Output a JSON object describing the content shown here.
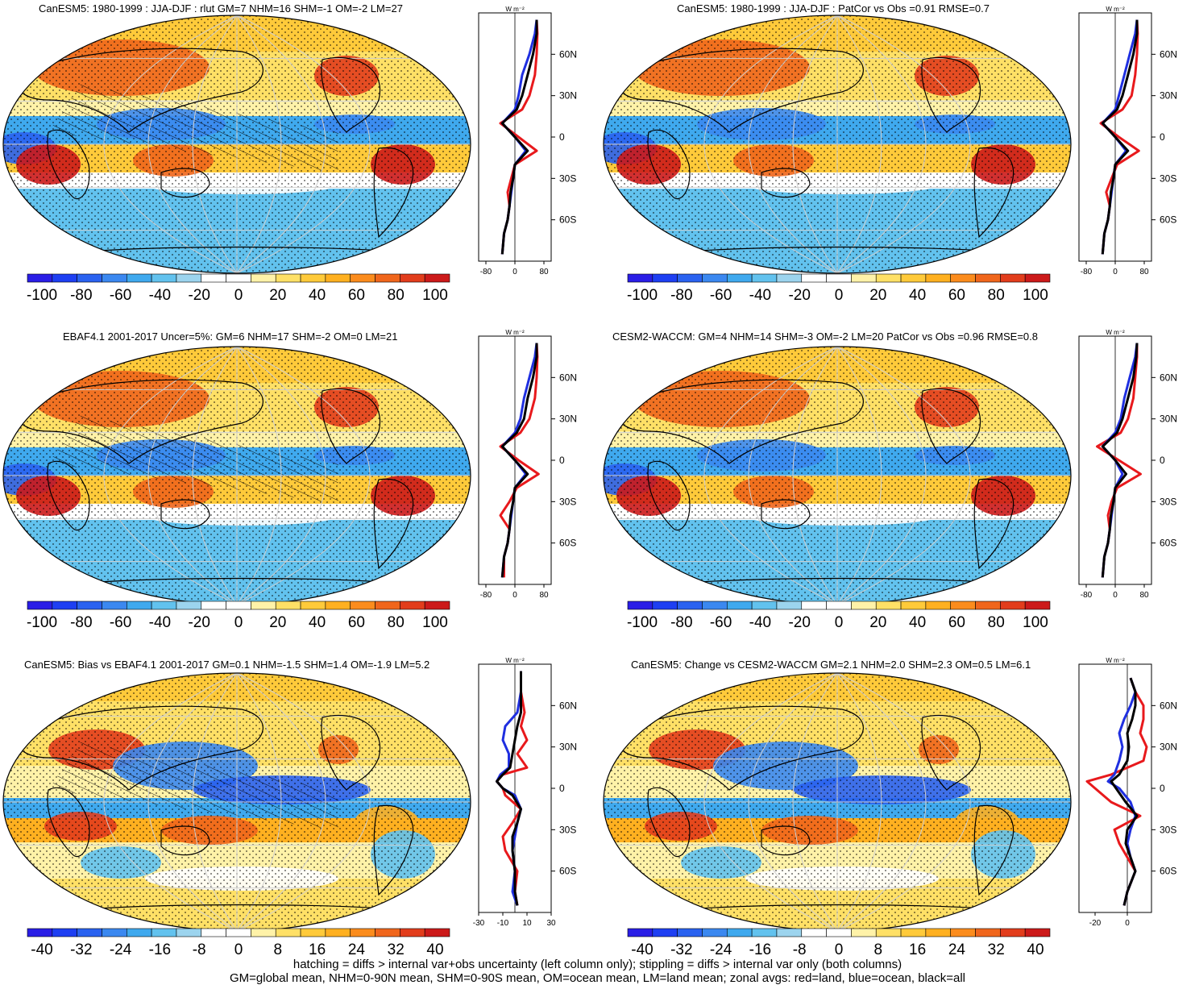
{
  "panels": [
    {
      "title": "CanESM5: 1980-1999 : JJA-DJF : rlut GM=7 NHM=16 SHM=-1 OM=-2 LM=27",
      "colorbar_ticks": [
        "-100",
        "-80",
        "-60",
        "-40",
        "-20",
        "0",
        "20",
        "40",
        "60",
        "80",
        "100"
      ],
      "zonal_xticks": [
        "-80",
        "0",
        "80"
      ],
      "zonal_yticks": [
        "60N",
        "30N",
        "0",
        "30S",
        "60S"
      ],
      "unit": "W m⁻²",
      "hatched": true
    },
    {
      "title": "CanESM5: 1980-1999 : JJA-DJF : PatCor vs Obs =0.91 RMSE=0.7",
      "colorbar_ticks": [
        "-100",
        "-80",
        "-60",
        "-40",
        "-20",
        "0",
        "20",
        "40",
        "60",
        "80",
        "100"
      ],
      "zonal_xticks": [
        "-80",
        "0",
        "80"
      ],
      "zonal_yticks": [
        "60N",
        "30N",
        "0",
        "30S",
        "60S"
      ],
      "unit": "W m⁻²",
      "hatched": false
    },
    {
      "title": "EBAF4.1 2001-2017 Uncer=5%: GM=6 NHM=17 SHM=-2 OM=0 LM=21",
      "colorbar_ticks": [
        "-100",
        "-80",
        "-60",
        "-40",
        "-20",
        "0",
        "20",
        "40",
        "60",
        "80",
        "100"
      ],
      "zonal_xticks": [
        "-80",
        "0",
        "80"
      ],
      "zonal_yticks": [
        "60N",
        "30N",
        "0",
        "30S",
        "60S"
      ],
      "unit": "W m⁻²",
      "hatched": true
    },
    {
      "title": "CESM2-WACCM: GM=4 NHM=14 SHM=-3 OM=-2 LM=20 PatCor vs Obs =0.96 RMSE=0.8",
      "colorbar_ticks": [
        "-100",
        "-80",
        "-60",
        "-40",
        "-20",
        "0",
        "20",
        "40",
        "60",
        "80",
        "100"
      ],
      "zonal_xticks": [
        "-80",
        "0",
        "80"
      ],
      "zonal_yticks": [
        "60N",
        "30N",
        "0",
        "30S",
        "60S"
      ],
      "unit": "W m⁻²",
      "hatched": false
    },
    {
      "title": "CanESM5: Bias vs EBAF4.1 2001-2017 GM=0.1 NHM=-1.5 SHM=1.4 OM=-1.9 LM=5.2",
      "colorbar_ticks": [
        "-40",
        "-32",
        "-24",
        "-16",
        "-8",
        "0",
        "8",
        "16",
        "24",
        "32",
        "40"
      ],
      "zonal_xticks": [
        "-30",
        "-10",
        "10",
        "30"
      ],
      "zonal_yticks": [
        "60N",
        "30N",
        "0",
        "30S",
        "60S"
      ],
      "unit": "W m⁻²",
      "hatched": true
    },
    {
      "title": "CanESM5: Change vs CESM2-WACCM GM=2.1 NHM=2.0 SHM=2.3 OM=0.5 LM=6.1",
      "colorbar_ticks": [
        "-40",
        "-32",
        "-24",
        "-16",
        "-8",
        "0",
        "8",
        "16",
        "24",
        "32",
        "40"
      ],
      "zonal_xticks": [
        "-20",
        "0"
      ],
      "zonal_yticks": [
        "60N",
        "30N",
        "0",
        "30S",
        "60S"
      ],
      "unit": "W m⁻²",
      "hatched": false
    }
  ],
  "footer": {
    "line1": "hatching = diffs > internal var+obs uncertainty (left column only); stippling = diffs > internal var only (both columns)",
    "line2": "GM=global mean, NHM=0-90N mean, SHM=0-90S mean, OM=ocean mean, LM=land mean; zonal avgs: red=land, blue=ocean, black=all"
  },
  "colors": {
    "land_line": "#e8191c",
    "ocean_line": "#1f2fe0",
    "all_line": "#000000",
    "palette": [
      "#2a1ee6",
      "#1e3ff2",
      "#2a62f0",
      "#3b88f0",
      "#3fa9ee",
      "#62c2ee",
      "#9cd4ee",
      "#ffffff",
      "#ffffff",
      "#fff2a8",
      "#ffe066",
      "#ffca3a",
      "#ffb020",
      "#fb8c1d",
      "#f0661c",
      "#e23d1c",
      "#cc1a1a"
    ]
  },
  "chart_data": [
    {
      "type": "line",
      "title": "CanESM5: 1980-1999 : JJA-DJF : rlut zonal average",
      "xlim": [
        -100,
        100
      ],
      "ylim": [
        -90,
        90
      ],
      "series": [
        {
          "name": "land",
          "lat": [
            -85,
            -70,
            -60,
            -50,
            -40,
            -30,
            -20,
            -10,
            0,
            10,
            20,
            30,
            45,
            60,
            75,
            85
          ],
          "values": [
            -35,
            -30,
            -20,
            -15,
            -20,
            -10,
            0,
            60,
            10,
            -40,
            20,
            40,
            55,
            60,
            62,
            60
          ]
        },
        {
          "name": "ocean",
          "lat": [
            -85,
            -70,
            -60,
            -50,
            -40,
            -30,
            -20,
            -10,
            0,
            10,
            20,
            30,
            45,
            60,
            75,
            85
          ],
          "values": [
            -35,
            -30,
            -20,
            -15,
            -10,
            -5,
            0,
            30,
            0,
            -35,
            0,
            10,
            20,
            40,
            55,
            60
          ]
        },
        {
          "name": "all",
          "lat": [
            -85,
            -70,
            -60,
            -50,
            -40,
            -30,
            -20,
            -10,
            0,
            10,
            20,
            30,
            45,
            60,
            75,
            85
          ],
          "values": [
            -35,
            -30,
            -20,
            -15,
            -12,
            -5,
            0,
            35,
            0,
            -35,
            5,
            20,
            35,
            50,
            60,
            60
          ]
        }
      ]
    },
    {
      "type": "line",
      "title": "CanESM5: 1980-1999 : JJA-DJF zonal average",
      "xlim": [
        -100,
        100
      ],
      "ylim": [
        -90,
        90
      ],
      "series": [
        {
          "name": "land",
          "lat": [
            -85,
            -70,
            -60,
            -50,
            -40,
            -30,
            -20,
            -10,
            0,
            10,
            20,
            30,
            45,
            60,
            75,
            85
          ],
          "values": [
            -35,
            -30,
            -20,
            -15,
            -25,
            -10,
            5,
            65,
            10,
            -40,
            20,
            45,
            55,
            60,
            62,
            60
          ]
        },
        {
          "name": "ocean",
          "lat": [
            -85,
            -70,
            -60,
            -50,
            -40,
            -30,
            -20,
            -10,
            0,
            10,
            20,
            30,
            45,
            60,
            75,
            85
          ],
          "values": [
            -35,
            -30,
            -20,
            -15,
            -10,
            -5,
            0,
            30,
            0,
            -35,
            0,
            10,
            25,
            40,
            55,
            60
          ]
        },
        {
          "name": "all",
          "lat": [
            -85,
            -70,
            -60,
            -50,
            -40,
            -30,
            -20,
            -10,
            0,
            10,
            20,
            30,
            45,
            60,
            75,
            85
          ],
          "values": [
            -35,
            -30,
            -20,
            -15,
            -12,
            -5,
            0,
            35,
            0,
            -35,
            5,
            20,
            35,
            50,
            60,
            60
          ]
        }
      ]
    },
    {
      "type": "line",
      "title": "EBAF4.1 2001-2017 zonal average",
      "xlim": [
        -100,
        100
      ],
      "ylim": [
        -90,
        90
      ],
      "series": [
        {
          "name": "land",
          "lat": [
            -85,
            -70,
            -60,
            -50,
            -40,
            -30,
            -20,
            -10,
            0,
            10,
            20,
            30,
            45,
            60,
            75,
            85
          ],
          "values": [
            -30,
            -30,
            -20,
            -15,
            -40,
            -15,
            5,
            65,
            10,
            -40,
            15,
            40,
            55,
            60,
            62,
            60
          ]
        },
        {
          "name": "ocean",
          "lat": [
            -85,
            -70,
            -60,
            -50,
            -40,
            -30,
            -20,
            -10,
            0,
            10,
            20,
            30,
            45,
            60,
            75,
            85
          ],
          "values": [
            -35,
            -30,
            -20,
            -15,
            -10,
            -5,
            0,
            30,
            0,
            -35,
            0,
            15,
            25,
            40,
            55,
            60
          ]
        },
        {
          "name": "all",
          "lat": [
            -85,
            -70,
            -60,
            -50,
            -40,
            -30,
            -20,
            -10,
            0,
            10,
            20,
            30,
            45,
            60,
            75,
            85
          ],
          "values": [
            -35,
            -30,
            -20,
            -15,
            -12,
            -5,
            0,
            35,
            0,
            -35,
            5,
            25,
            35,
            50,
            60,
            60
          ]
        }
      ]
    },
    {
      "type": "line",
      "title": "CESM2-WACCM zonal average",
      "xlim": [
        -100,
        100
      ],
      "ylim": [
        -90,
        90
      ],
      "series": [
        {
          "name": "land",
          "lat": [
            -85,
            -70,
            -60,
            -50,
            -40,
            -30,
            -20,
            -10,
            0,
            10,
            20,
            30,
            45,
            60,
            75,
            85
          ],
          "values": [
            -35,
            -30,
            -20,
            -15,
            -20,
            -10,
            5,
            70,
            10,
            -50,
            15,
            35,
            50,
            55,
            60,
            60
          ]
        },
        {
          "name": "ocean",
          "lat": [
            -85,
            -70,
            -60,
            -50,
            -40,
            -30,
            -20,
            -10,
            0,
            10,
            20,
            30,
            45,
            60,
            75,
            85
          ],
          "values": [
            -35,
            -30,
            -20,
            -15,
            -10,
            -5,
            0,
            20,
            0,
            -35,
            0,
            15,
            25,
            40,
            55,
            60
          ]
        },
        {
          "name": "all",
          "lat": [
            -85,
            -70,
            -60,
            -50,
            -40,
            -30,
            -20,
            -10,
            0,
            10,
            20,
            30,
            45,
            60,
            75,
            85
          ],
          "values": [
            -35,
            -30,
            -20,
            -15,
            -12,
            -5,
            0,
            30,
            0,
            -35,
            5,
            20,
            35,
            50,
            58,
            60
          ]
        }
      ]
    },
    {
      "type": "line",
      "title": "CanESM5: Bias vs EBAF4.1 zonal average",
      "xlim": [
        -30,
        30
      ],
      "ylim": [
        -90,
        90
      ],
      "series": [
        {
          "name": "land",
          "lat": [
            -85,
            -75,
            -60,
            -45,
            -35,
            -25,
            -15,
            -5,
            0,
            5,
            10,
            15,
            25,
            35,
            45,
            55,
            70,
            85
          ],
          "values": [
            2,
            0,
            2,
            -8,
            -10,
            -2,
            5,
            -8,
            -10,
            -15,
            -10,
            10,
            2,
            10,
            5,
            8,
            5,
            5
          ]
        },
        {
          "name": "ocean",
          "lat": [
            -85,
            -75,
            -60,
            -45,
            -35,
            -25,
            -15,
            -5,
            0,
            5,
            10,
            15,
            25,
            35,
            45,
            55,
            70,
            85
          ],
          "values": [
            2,
            -2,
            0,
            -2,
            0,
            2,
            5,
            0,
            -10,
            -15,
            -12,
            -5,
            -5,
            -10,
            -8,
            2,
            5,
            5
          ]
        },
        {
          "name": "all",
          "lat": [
            -85,
            -75,
            -60,
            -45,
            -35,
            -25,
            -15,
            -5,
            0,
            5,
            10,
            15,
            25,
            35,
            45,
            55,
            70,
            85
          ],
          "values": [
            2,
            0,
            0,
            -2,
            -2,
            2,
            5,
            -2,
            -10,
            -15,
            -10,
            -4,
            -2,
            0,
            2,
            5,
            5,
            5
          ]
        }
      ]
    },
    {
      "type": "line",
      "title": "CanESM5: Change vs CESM2-WACCM zonal average",
      "xlim": [
        -30,
        15
      ],
      "ylim": [
        -90,
        90
      ],
      "series": [
        {
          "name": "land",
          "lat": [
            -85,
            -75,
            -60,
            -50,
            -40,
            -30,
            -20,
            -10,
            0,
            5,
            10,
            20,
            30,
            40,
            50,
            60,
            70,
            80
          ],
          "values": [
            -2,
            0,
            5,
            0,
            -5,
            -8,
            8,
            -10,
            -20,
            -25,
            -10,
            10,
            12,
            8,
            10,
            10,
            5,
            2
          ]
        },
        {
          "name": "ocean",
          "lat": [
            -85,
            -75,
            -60,
            -50,
            -40,
            -30,
            -20,
            -10,
            0,
            5,
            10,
            20,
            30,
            40,
            50,
            60,
            70,
            80
          ],
          "values": [
            -2,
            0,
            5,
            2,
            0,
            2,
            5,
            2,
            -5,
            -12,
            -8,
            -5,
            -3,
            -5,
            -2,
            2,
            5,
            2
          ]
        },
        {
          "name": "all",
          "lat": [
            -85,
            -75,
            -60,
            -50,
            -40,
            -30,
            -20,
            -10,
            0,
            5,
            10,
            20,
            30,
            40,
            50,
            60,
            70,
            80
          ],
          "values": [
            -2,
            0,
            5,
            2,
            -1,
            0,
            6,
            -1,
            -7,
            -10,
            -5,
            0,
            1,
            0,
            3,
            5,
            5,
            2
          ]
        }
      ]
    }
  ]
}
